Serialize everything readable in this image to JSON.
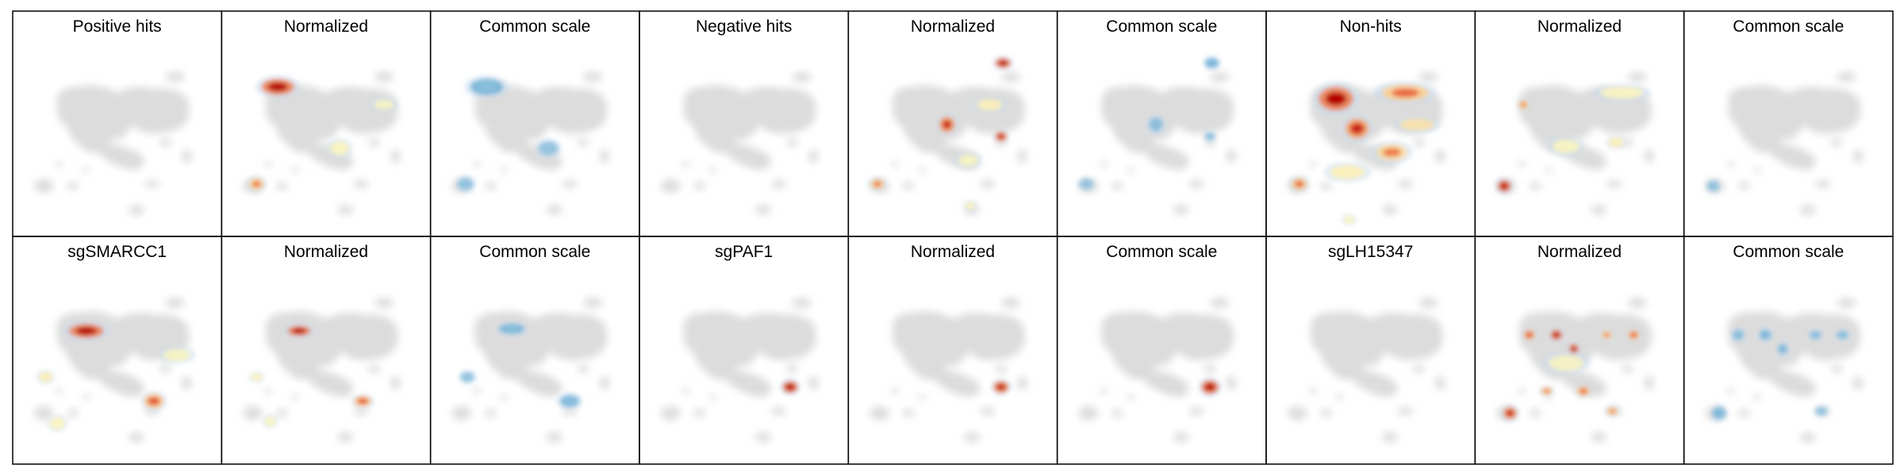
{
  "chart_data": {
    "type": "heatmap",
    "description_layout": "grid",
    "rows": [
      [
        {
          "title": "Positive hits",
          "overlay": "none",
          "blobs": []
        },
        {
          "title": "Normalized",
          "overlay": "normalized",
          "blobs": [
            {
              "x": 0.25,
              "y": 0.27,
              "w": 0.17,
              "h": 0.08,
              "level": 1.0
            },
            {
              "x": 0.14,
              "y": 0.76,
              "w": 0.08,
              "h": 0.06,
              "level": 0.35
            },
            {
              "x": 0.57,
              "y": 0.58,
              "w": 0.1,
              "h": 0.07,
              "level": 0.15
            },
            {
              "x": 0.8,
              "y": 0.36,
              "w": 0.1,
              "h": 0.05,
              "level": 0.1
            }
          ]
        },
        {
          "title": "Common scale",
          "overlay": "common",
          "blobs": [
            {
              "x": 0.25,
              "y": 0.27,
              "w": 0.17,
              "h": 0.08,
              "level": 0.45
            },
            {
              "x": 0.14,
              "y": 0.76,
              "w": 0.08,
              "h": 0.06,
              "level": 0.15
            },
            {
              "x": 0.57,
              "y": 0.58,
              "w": 0.1,
              "h": 0.07,
              "level": 0.12
            }
          ]
        },
        {
          "title": "Negative hits",
          "overlay": "none",
          "blobs": []
        },
        {
          "title": "Normalized",
          "overlay": "normalized",
          "blobs": [
            {
              "x": 0.76,
              "y": 0.15,
              "w": 0.08,
              "h": 0.05,
              "level": 1.0
            },
            {
              "x": 0.47,
              "y": 0.46,
              "w": 0.08,
              "h": 0.08,
              "level": 0.8
            },
            {
              "x": 0.75,
              "y": 0.52,
              "w": 0.06,
              "h": 0.05,
              "level": 0.9
            },
            {
              "x": 0.69,
              "y": 0.36,
              "w": 0.13,
              "h": 0.06,
              "level": 0.2
            },
            {
              "x": 0.11,
              "y": 0.76,
              "w": 0.07,
              "h": 0.05,
              "level": 0.4
            },
            {
              "x": 0.58,
              "y": 0.64,
              "w": 0.1,
              "h": 0.06,
              "level": 0.12
            },
            {
              "x": 0.59,
              "y": 0.87,
              "w": 0.05,
              "h": 0.04,
              "level": 0.15
            }
          ]
        },
        {
          "title": "Common scale",
          "overlay": "common",
          "blobs": [
            {
              "x": 0.76,
              "y": 0.15,
              "w": 0.07,
              "h": 0.05,
              "level": 0.5
            },
            {
              "x": 0.47,
              "y": 0.46,
              "w": 0.07,
              "h": 0.07,
              "level": 0.2
            },
            {
              "x": 0.75,
              "y": 0.52,
              "w": 0.05,
              "h": 0.04,
              "level": 0.2
            },
            {
              "x": 0.11,
              "y": 0.76,
              "w": 0.07,
              "h": 0.05,
              "level": 0.12
            }
          ]
        },
        {
          "title": "Non-hits",
          "overlay": "normalized",
          "blobs": [
            {
              "x": 0.32,
              "y": 0.33,
              "w": 0.18,
              "h": 0.12,
              "level": 1.0
            },
            {
              "x": 0.43,
              "y": 0.48,
              "w": 0.12,
              "h": 0.1,
              "level": 0.8
            },
            {
              "x": 0.68,
              "y": 0.3,
              "w": 0.24,
              "h": 0.08,
              "level": 0.45
            },
            {
              "x": 0.74,
              "y": 0.46,
              "w": 0.18,
              "h": 0.06,
              "level": 0.3
            },
            {
              "x": 0.61,
              "y": 0.6,
              "w": 0.16,
              "h": 0.08,
              "level": 0.35
            },
            {
              "x": 0.13,
              "y": 0.76,
              "w": 0.08,
              "h": 0.06,
              "level": 0.45
            },
            {
              "x": 0.38,
              "y": 0.7,
              "w": 0.18,
              "h": 0.07,
              "level": 0.2
            },
            {
              "x": 0.39,
              "y": 0.94,
              "w": 0.06,
              "h": 0.04,
              "level": 0.12
            }
          ]
        },
        {
          "title": "Normalized",
          "overlay": "normalized",
          "blobs": [
            {
              "x": 0.11,
              "y": 0.77,
              "w": 0.07,
              "h": 0.06,
              "level": 1.0
            },
            {
              "x": 0.21,
              "y": 0.36,
              "w": 0.05,
              "h": 0.05,
              "level": 0.35
            },
            {
              "x": 0.72,
              "y": 0.3,
              "w": 0.22,
              "h": 0.06,
              "level": 0.15
            },
            {
              "x": 0.43,
              "y": 0.57,
              "w": 0.14,
              "h": 0.07,
              "level": 0.12
            },
            {
              "x": 0.69,
              "y": 0.55,
              "w": 0.08,
              "h": 0.05,
              "level": 0.2
            }
          ]
        },
        {
          "title": "Common scale",
          "overlay": "common",
          "blobs": [
            {
              "x": 0.11,
              "y": 0.77,
              "w": 0.06,
              "h": 0.05,
              "level": 0.15
            }
          ]
        }
      ],
      [
        {
          "title": "sgSMARCC1",
          "overlay": "normalized",
          "blobs": [
            {
              "x": 0.34,
              "y": 0.36,
              "w": 0.18,
              "h": 0.07,
              "level": 1.0
            },
            {
              "x": 0.69,
              "y": 0.71,
              "w": 0.1,
              "h": 0.07,
              "level": 0.55
            },
            {
              "x": 0.13,
              "y": 0.59,
              "w": 0.07,
              "h": 0.05,
              "level": 0.2
            },
            {
              "x": 0.19,
              "y": 0.82,
              "w": 0.08,
              "h": 0.06,
              "level": 0.15
            },
            {
              "x": 0.81,
              "y": 0.48,
              "w": 0.14,
              "h": 0.06,
              "level": 0.12
            }
          ]
        },
        {
          "title": "Normalized",
          "overlay": "normalized",
          "blobs": [
            {
              "x": 0.36,
              "y": 0.36,
              "w": 0.12,
              "h": 0.05,
              "level": 1.0
            },
            {
              "x": 0.69,
              "y": 0.71,
              "w": 0.09,
              "h": 0.05,
              "level": 0.55
            },
            {
              "x": 0.14,
              "y": 0.59,
              "w": 0.06,
              "h": 0.04,
              "level": 0.15
            },
            {
              "x": 0.21,
              "y": 0.81,
              "w": 0.06,
              "h": 0.05,
              "level": 0.12
            }
          ]
        },
        {
          "title": "Common scale",
          "overlay": "common",
          "blobs": [
            {
              "x": 0.38,
              "y": 0.35,
              "w": 0.13,
              "h": 0.05,
              "level": 0.45
            },
            {
              "x": 0.68,
              "y": 0.71,
              "w": 0.1,
              "h": 0.06,
              "level": 0.3
            },
            {
              "x": 0.15,
              "y": 0.59,
              "w": 0.07,
              "h": 0.05,
              "level": 0.15
            }
          ]
        },
        {
          "title": "sgPAF1",
          "overlay": "normalized",
          "blobs": [
            {
              "x": 0.74,
              "y": 0.64,
              "w": 0.08,
              "h": 0.06,
              "level": 1.0
            }
          ]
        },
        {
          "title": "Normalized",
          "overlay": "normalized",
          "blobs": [
            {
              "x": 0.75,
              "y": 0.64,
              "w": 0.08,
              "h": 0.06,
              "level": 0.9
            }
          ]
        },
        {
          "title": "Common scale",
          "overlay": "normalized",
          "blobs": [
            {
              "x": 0.75,
              "y": 0.64,
              "w": 0.09,
              "h": 0.07,
              "level": 1.0
            }
          ]
        },
        {
          "title": "sgLH15347",
          "overlay": "none",
          "blobs": []
        },
        {
          "title": "Normalized",
          "overlay": "normalized",
          "blobs": [
            {
              "x": 0.24,
              "y": 0.38,
              "w": 0.06,
              "h": 0.05,
              "level": 0.6
            },
            {
              "x": 0.38,
              "y": 0.38,
              "w": 0.06,
              "h": 0.05,
              "level": 1.0
            },
            {
              "x": 0.47,
              "y": 0.45,
              "w": 0.05,
              "h": 0.05,
              "level": 0.95
            },
            {
              "x": 0.78,
              "y": 0.38,
              "w": 0.06,
              "h": 0.05,
              "level": 0.5
            },
            {
              "x": 0.64,
              "y": 0.38,
              "w": 0.06,
              "h": 0.04,
              "level": 0.35
            },
            {
              "x": 0.14,
              "y": 0.77,
              "w": 0.07,
              "h": 0.06,
              "level": 0.85
            },
            {
              "x": 0.33,
              "y": 0.66,
              "w": 0.06,
              "h": 0.04,
              "level": 0.4
            },
            {
              "x": 0.52,
              "y": 0.66,
              "w": 0.07,
              "h": 0.05,
              "level": 0.45
            },
            {
              "x": 0.67,
              "y": 0.76,
              "w": 0.06,
              "h": 0.04,
              "level": 0.35
            },
            {
              "x": 0.43,
              "y": 0.52,
              "w": 0.18,
              "h": 0.08,
              "level": 0.1
            }
          ]
        },
        {
          "title": "Common scale",
          "overlay": "common",
          "blobs": [
            {
              "x": 0.24,
              "y": 0.38,
              "w": 0.06,
              "h": 0.05,
              "level": 0.2
            },
            {
              "x": 0.38,
              "y": 0.38,
              "w": 0.06,
              "h": 0.05,
              "level": 0.3
            },
            {
              "x": 0.47,
              "y": 0.45,
              "w": 0.05,
              "h": 0.05,
              "level": 0.3
            },
            {
              "x": 0.64,
              "y": 0.38,
              "w": 0.06,
              "h": 0.04,
              "level": 0.2
            },
            {
              "x": 0.78,
              "y": 0.38,
              "w": 0.06,
              "h": 0.04,
              "level": 0.25
            },
            {
              "x": 0.14,
              "y": 0.77,
              "w": 0.07,
              "h": 0.06,
              "level": 0.3
            },
            {
              "x": 0.67,
              "y": 0.76,
              "w": 0.06,
              "h": 0.04,
              "level": 0.15
            }
          ]
        }
      ]
    ]
  },
  "colors": {
    "background_map": "#dcdcdc",
    "frame": "#000000",
    "normalized_scale": [
      "#6baed6",
      "#c6dbef",
      "#fff7bc",
      "#fdae61",
      "#e34a33",
      "#b30000"
    ],
    "common_scale": [
      "#c6dbef",
      "#9ecae1",
      "#6baed6",
      "#4a8ec4"
    ]
  }
}
